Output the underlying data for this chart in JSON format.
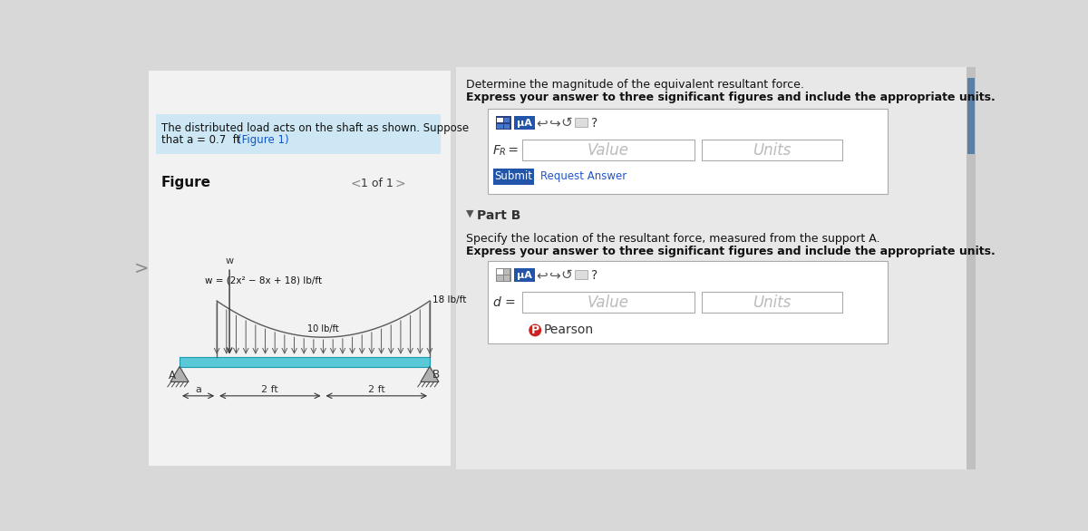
{
  "bg_color": "#d8d8d8",
  "left_panel_bg": "#f2f2f2",
  "right_panel_bg": "#e8e8e8",
  "problem_text_bg": "#cde8f4",
  "problem_text_line1": "The distributed load acts on the shaft as shown. Suppose",
  "problem_text_line2": "that a = 0.7  ft  (Figure 1)",
  "figure_label": "Figure",
  "page_label": "1 of 1",
  "beam_color": "#5bc8d8",
  "beam_edge_color": "#1a9ab0",
  "load_color": "#5a5a5a",
  "equation_text": "w = (2x² − 8x + 18) lb/ft",
  "load_min_label": "10 lb/ft",
  "load_max_label": "18 lb/ft",
  "dim_a": "a",
  "dim_2ft_1": "2 ft",
  "dim_2ft_2": "2 ft",
  "label_A": "A",
  "label_B": "B",
  "part_a_title": "Determine the magnitude of the equivalent resultant force.",
  "part_a_subtitle": "Express your answer to three significant figures and include the appropriate units.",
  "part_b_intro": "Specify the location of the resultant force, measured from the support A.",
  "part_b_subtitle": "Express your answer to three significant figures and include the appropriate units.",
  "value_placeholder": "Value",
  "units_placeholder": "Units",
  "submit_text": "Submit",
  "request_answer_text": "Request Answer",
  "part_b_label": "Part B",
  "pearson_text": "Pearson",
  "scrollbar_color": "#5b7fa6",
  "mu_btn_color": "#2255aa",
  "submit_btn_color": "#2255aa",
  "link_color": "#2255cc",
  "support_color": "#b0b0b0",
  "support_edge": "#444444"
}
